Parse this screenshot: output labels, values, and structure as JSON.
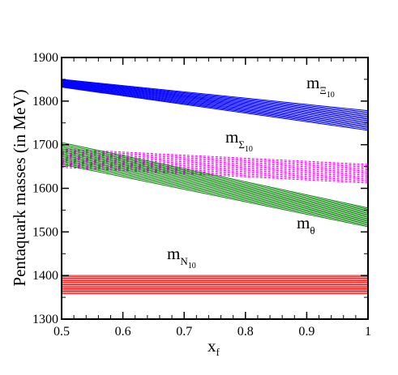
{
  "chart_data": {
    "type": "line",
    "title": "",
    "xlabel_main": "x",
    "xlabel_sub": "f",
    "ylabel": "Pentaquark masses (in MeV)",
    "xlim": [
      0.5,
      1.0
    ],
    "ylim": [
      1300,
      1900
    ],
    "xticks": [
      0.5,
      0.6,
      0.7,
      0.8,
      0.9,
      1.0
    ],
    "xtick_labels": [
      "0.5",
      "0.6",
      "0.7",
      "0.8",
      "0.9",
      "1"
    ],
    "yticks": [
      1300,
      1400,
      1500,
      1600,
      1700,
      1800,
      1900
    ],
    "ytick_labels": [
      "1300",
      "1400",
      "1500",
      "1600",
      "1700",
      "1800",
      "1900"
    ],
    "grid": false,
    "legend": "none",
    "series": [
      {
        "key": "xi10",
        "label_main": "m",
        "label_sub": "Ξ",
        "label_subsub": "10",
        "color": "#0000ff",
        "style": "solid",
        "x": [
          0.5,
          1.0
        ],
        "lower": [
          1832,
          1733
        ],
        "upper": [
          1850,
          1778
        ]
      },
      {
        "key": "sigma10",
        "label_main": "m",
        "label_sub": "Σ",
        "label_subsub": "10",
        "color": "#ff00ff",
        "style": "dashed",
        "x": [
          0.5,
          1.0
        ],
        "lower": [
          1648,
          1612
        ],
        "upper": [
          1690,
          1655
        ]
      },
      {
        "key": "theta",
        "label_main": "m",
        "label_sub": "θ",
        "label_subsub": "",
        "color": "#008000",
        "style": "solid",
        "x": [
          0.5,
          1.0
        ],
        "lower": [
          1655,
          1512
        ],
        "upper": [
          1705,
          1555
        ]
      },
      {
        "key": "n10",
        "label_main": "m",
        "label_sub": "N",
        "label_subsub": "10",
        "color": "#ff0000",
        "style": "solid",
        "x": [
          0.5,
          1.0
        ],
        "lower": [
          1358,
          1358
        ],
        "upper": [
          1400,
          1400
        ]
      }
    ]
  }
}
